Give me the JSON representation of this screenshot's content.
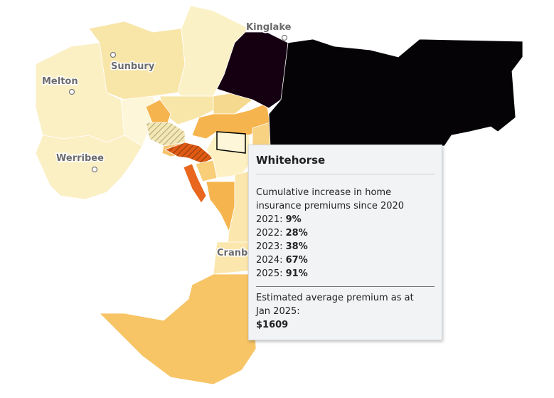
{
  "places": [
    {
      "label": "Kinglake"
    },
    {
      "label": "Sunbury"
    },
    {
      "label": "Melton"
    },
    {
      "label": "Werribee"
    },
    {
      "label": "Cranbourne"
    }
  ],
  "tooltip": {
    "title": "Whitehorse",
    "description": "Cumulative increase in home insurance premiums since 2020",
    "rows": [
      {
        "year": "2021:",
        "value": "9%"
      },
      {
        "year": "2022:",
        "value": "28%"
      },
      {
        "year": "2023:",
        "value": "38%"
      },
      {
        "year": "2024:",
        "value": "67%"
      },
      {
        "year": "2025:",
        "value": "91%"
      }
    ],
    "premium_label": "Estimated average premium as at Jan 2025:",
    "premium_value": "$1609"
  }
}
